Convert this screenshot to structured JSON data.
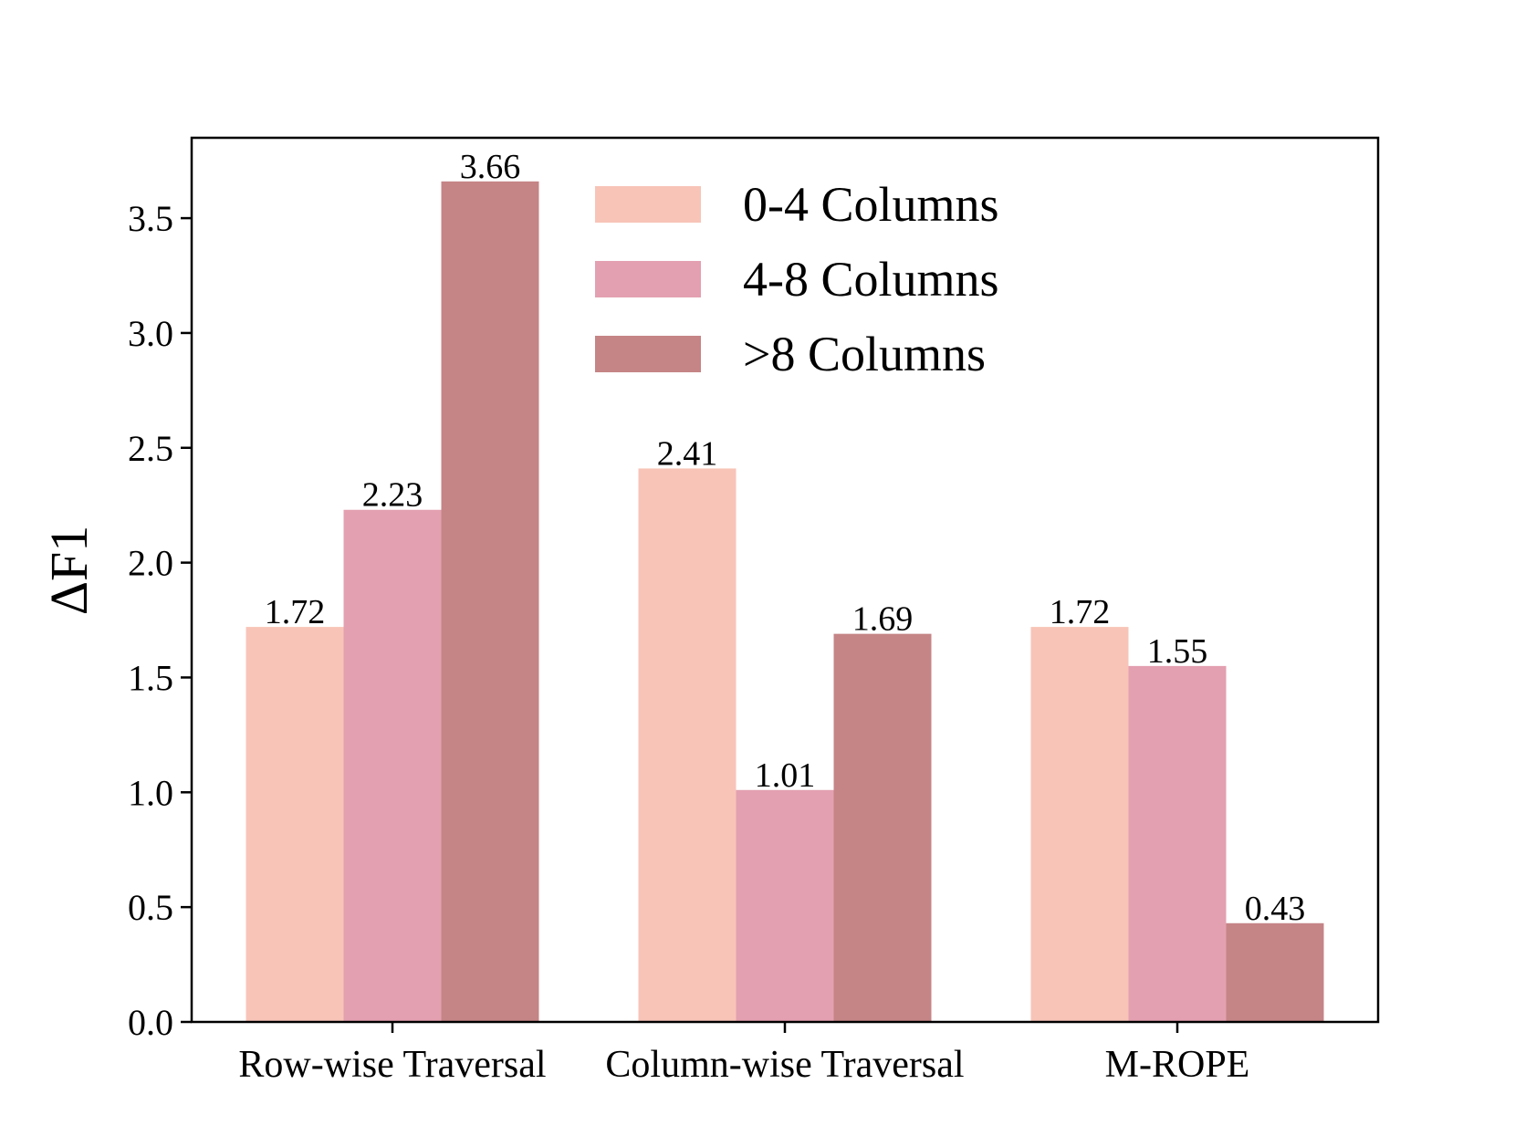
{
  "chart_data": {
    "type": "bar",
    "ylabel": "ΔF1",
    "xlabel": "",
    "title": "",
    "ylim": [
      0,
      3.85
    ],
    "yticks": [
      "0.0",
      "0.5",
      "1.0",
      "1.5",
      "2.0",
      "2.5",
      "3.0",
      "3.5"
    ],
    "categories": [
      "Row-wise Traversal",
      "Column-wise Traversal",
      "M-ROPE"
    ],
    "series": [
      {
        "name": "0-4 Columns",
        "color": "#f8c4b8",
        "values": [
          1.72,
          2.41,
          1.72
        ],
        "labels": [
          "1.72",
          "2.41",
          "1.72"
        ]
      },
      {
        "name": "4-8 Columns",
        "color": "#e3a0b0",
        "values": [
          2.23,
          1.01,
          1.55
        ],
        "labels": [
          "2.23",
          "1.01",
          "1.55"
        ]
      },
      {
        "name": ">8 Columns",
        "color": "#c58486",
        "values": [
          3.66,
          1.69,
          0.43
        ],
        "labels": [
          "3.66",
          "1.69",
          "0.43"
        ]
      }
    ],
    "legend": {
      "position": "top-center"
    },
    "grid": false
  }
}
